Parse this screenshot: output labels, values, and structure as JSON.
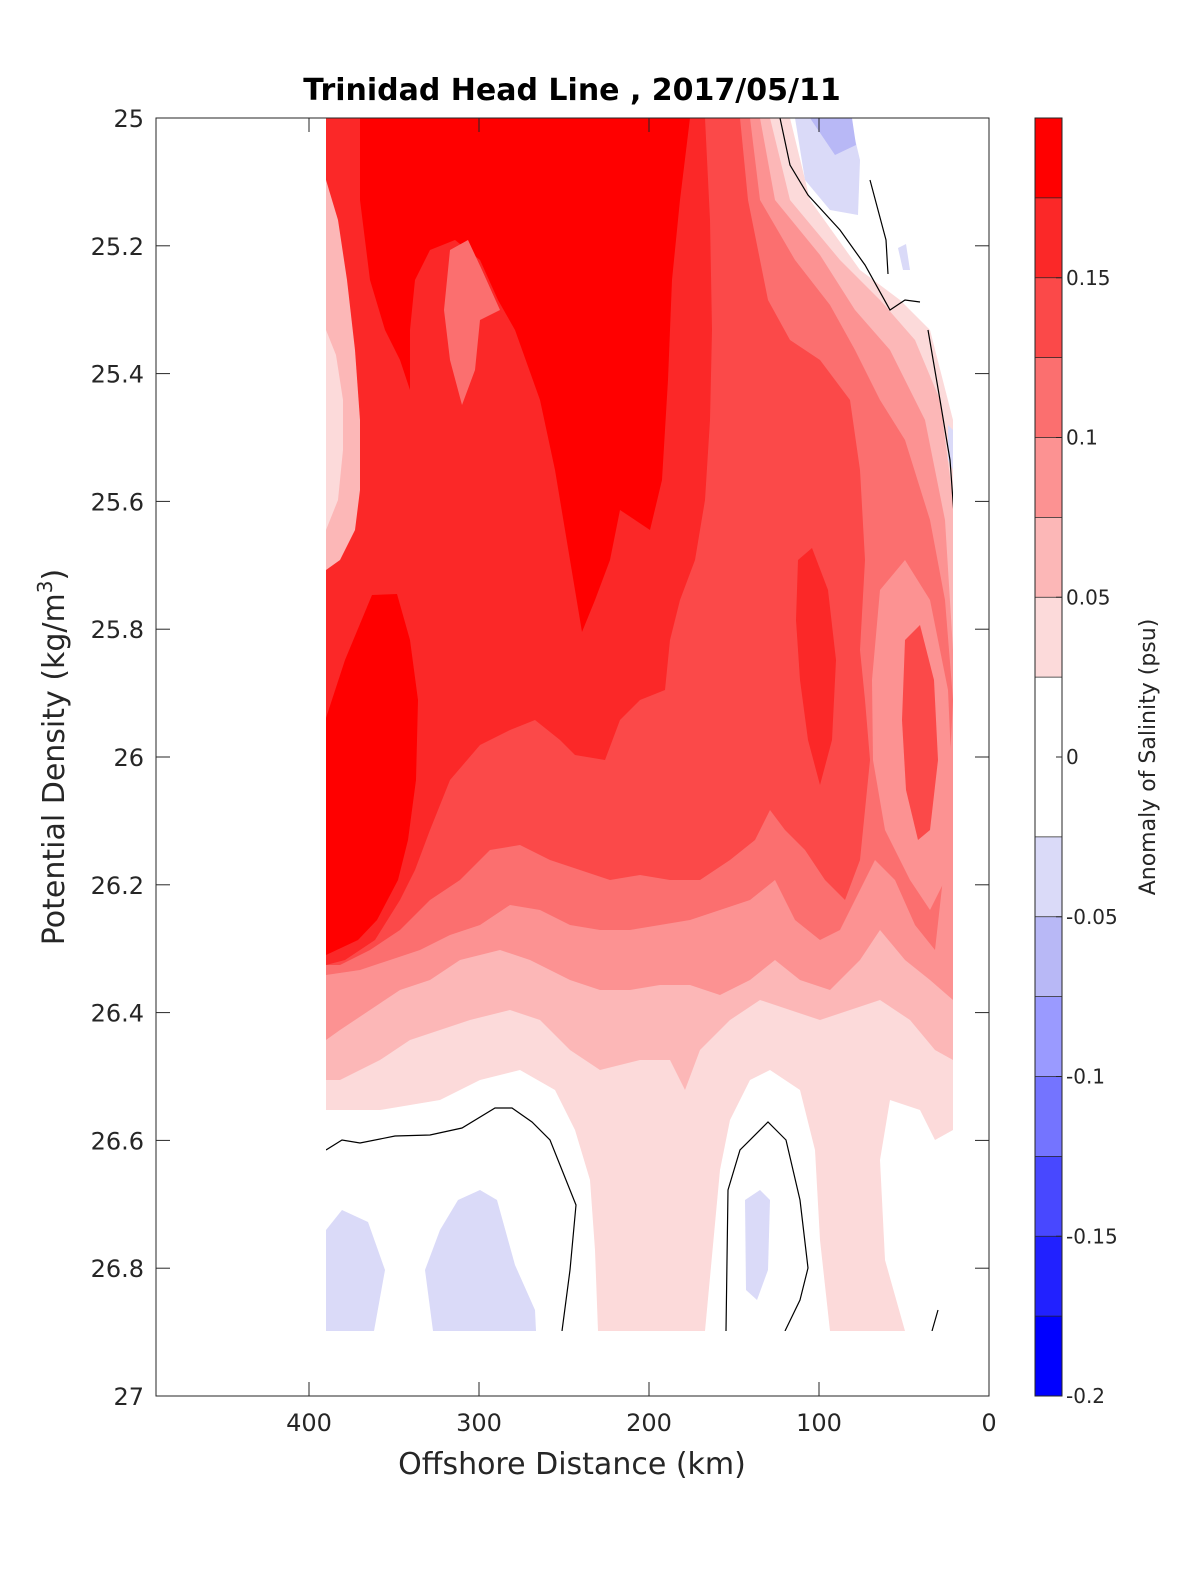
{
  "chart_data": {
    "type": "heatmap",
    "title": "Trinidad Head Line , 2017/05/11",
    "xlabel": "Offshore Distance (km)",
    "ylabel": "Potential Density (kg/m",
    "ylabel_superscript": "3",
    "ylabel_close": ")",
    "xlim": [
      490,
      0
    ],
    "ylim": [
      25,
      27
    ],
    "x_ticks": [
      400,
      300,
      200,
      100,
      0
    ],
    "x_tick_labels": [
      "400",
      "300",
      "200",
      "100",
      "0"
    ],
    "y_ticks": [
      25,
      25.2,
      25.4,
      25.6,
      25.8,
      26,
      26.2,
      26.4,
      26.6,
      26.8,
      27
    ],
    "y_tick_labels": [
      "25",
      "25.2",
      "25.4",
      "25.6",
      "25.8",
      "26",
      "26.2",
      "26.4",
      "26.6",
      "26.8",
      "27"
    ],
    "colorbar": {
      "label": "Anomaly of Salinity (psu)",
      "range": [
        -0.2,
        0.2
      ],
      "tick_values": [
        -0.2,
        -0.15,
        -0.1,
        -0.05,
        0,
        0.05,
        0.1,
        0.15
      ],
      "tick_labels": [
        "-0.2",
        "-0.15",
        "-0.1",
        "-0.05",
        "0",
        "0.05",
        "0.1",
        "0.15"
      ],
      "levels": [
        -0.2,
        -0.175,
        -0.15,
        -0.125,
        -0.1,
        -0.075,
        -0.05,
        -0.025,
        0.025,
        0.05,
        0.075,
        0.1,
        0.125,
        0.15,
        0.175,
        0.2
      ],
      "colors": [
        "#0000ff",
        "#2121ff",
        "#4848ff",
        "#7474ff",
        "#9a9aff",
        "#b8b8f6",
        "#dadaf8",
        "#ffffff",
        "#fcdada",
        "#fcb7b7",
        "#fc9292",
        "#fb6f6f",
        "#fb4949",
        "#fb2828",
        "#ff0000"
      ]
    },
    "data_extent": {
      "x_range_km": [
        390,
        20
      ],
      "density_range": [
        25,
        26.9
      ]
    },
    "grid": false,
    "colors": {
      "axis": "#262626",
      "zero_contour": "#000000"
    }
  }
}
